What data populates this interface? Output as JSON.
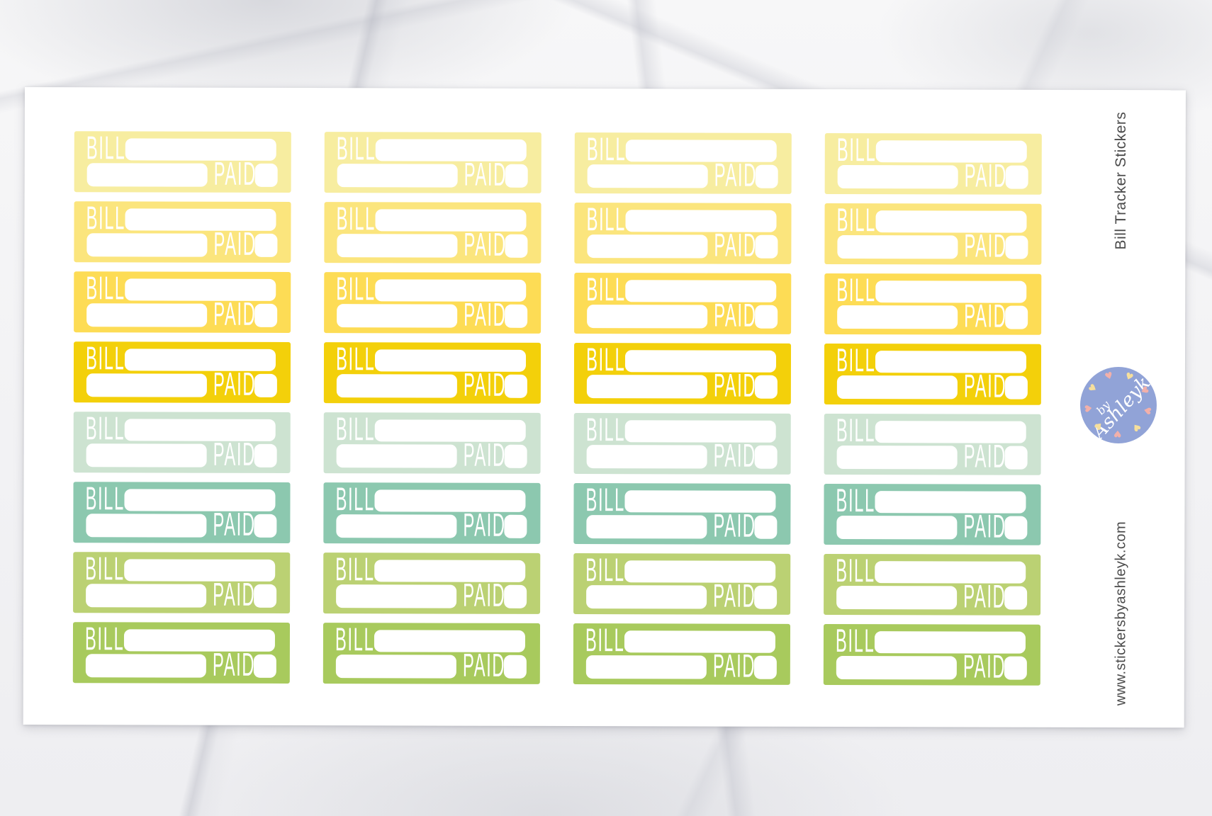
{
  "scene": {
    "background": "white-marble",
    "sheet": "white-sticker-sheet"
  },
  "sticker_sheet": {
    "columns": 4,
    "sticker": {
      "bill_label": "BILL",
      "paid_label": "PAID",
      "text_color": "#ffffff",
      "field_color": "#ffffff"
    },
    "rows": [
      {
        "name": "pale-yellow",
        "color": "#F7EDA0"
      },
      {
        "name": "light-yellow",
        "color": "#FBE57D"
      },
      {
        "name": "yellow",
        "color": "#FDDC55"
      },
      {
        "name": "gold",
        "color": "#F3D00A"
      },
      {
        "name": "pale-mint",
        "color": "#CDE3D1"
      },
      {
        "name": "mint-green",
        "color": "#8CC8AF"
      },
      {
        "name": "light-green",
        "color": "#BBD173"
      },
      {
        "name": "green",
        "color": "#A8CA5D"
      }
    ]
  },
  "side": {
    "title": "Bill Tracker Stickers",
    "website": "www.stickersbyashleyk.com",
    "text_color": "#4b4b4b"
  },
  "logo": {
    "line1": "by",
    "line2": "Ashleyk",
    "circle_color": "#91A3D7",
    "text_color": "#ffffff",
    "heart_colors": [
      "#F2B0AA",
      "#F6DF9C"
    ],
    "heart_count": 9
  }
}
